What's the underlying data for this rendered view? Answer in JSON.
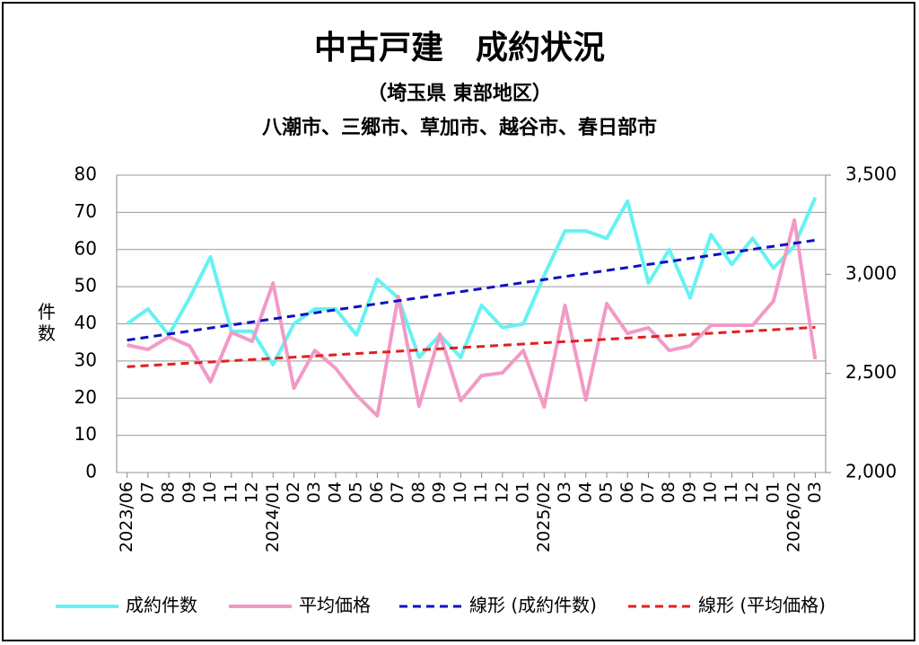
{
  "chart_data": {
    "type": "line",
    "title": "中古戸建　成約状況",
    "subtitle": "（埼玉県 東部地区）",
    "subtitle2": "八潮市、三郷市、草加市、越谷市、春日部市",
    "ylabel": "件数",
    "categories": [
      "2023/06",
      "07",
      "08",
      "09",
      "10",
      "11",
      "12",
      "2024/01",
      "02",
      "03",
      "04",
      "05",
      "06",
      "07",
      "08",
      "09",
      "10",
      "11",
      "12",
      "01",
      "2025/02",
      "03",
      "04",
      "05",
      "06",
      "07",
      "08",
      "09",
      "10",
      "11",
      "12",
      "01",
      "2026/02",
      "03"
    ],
    "series": [
      {
        "name": "成約件数",
        "color": "#66f2f2",
        "values": [
          40,
          44,
          37,
          47,
          58,
          38,
          38,
          29,
          40,
          44,
          44,
          37,
          52,
          47,
          31,
          37,
          31,
          45,
          39,
          40,
          53,
          65,
          65,
          63,
          73,
          51,
          60,
          47,
          64,
          56,
          63,
          55,
          61,
          74
        ]
      },
      {
        "name": "平均価格",
        "color": "#f29ac6",
        "axis": "y2",
        "values": [
          2643,
          2621,
          2684,
          2639,
          2458,
          2707,
          2662,
          2956,
          2426,
          2616,
          2526,
          2390,
          2286,
          2888,
          2335,
          2698,
          2363,
          2489,
          2503,
          2616,
          2331,
          2843,
          2367,
          2852,
          2702,
          2730,
          2616,
          2639,
          2743,
          2743,
          2743,
          2866,
          3273,
          2571
        ]
      },
      {
        "name": "線形 (成約件数)",
        "color": "#1010c0",
        "dashed": true,
        "trend": "linear",
        "of": "成約件数"
      },
      {
        "name": "線形 (平均価格)",
        "color": "#e02020",
        "dashed": true,
        "trend": "linear",
        "of": "平均価格",
        "axis": "y2"
      }
    ],
    "ylim": [
      0,
      80
    ],
    "yticks": [
      0,
      10,
      20,
      30,
      40,
      50,
      60,
      70,
      80
    ],
    "y2lim": [
      2000,
      3500
    ],
    "y2ticks": [
      {
        "value": 2000,
        "label": "2,000"
      },
      {
        "value": 2500,
        "label": "2,500"
      },
      {
        "value": 3000,
        "label": "3,000"
      },
      {
        "value": 3500,
        "label": "3,500"
      }
    ],
    "grid": true,
    "legend": "bottom"
  }
}
